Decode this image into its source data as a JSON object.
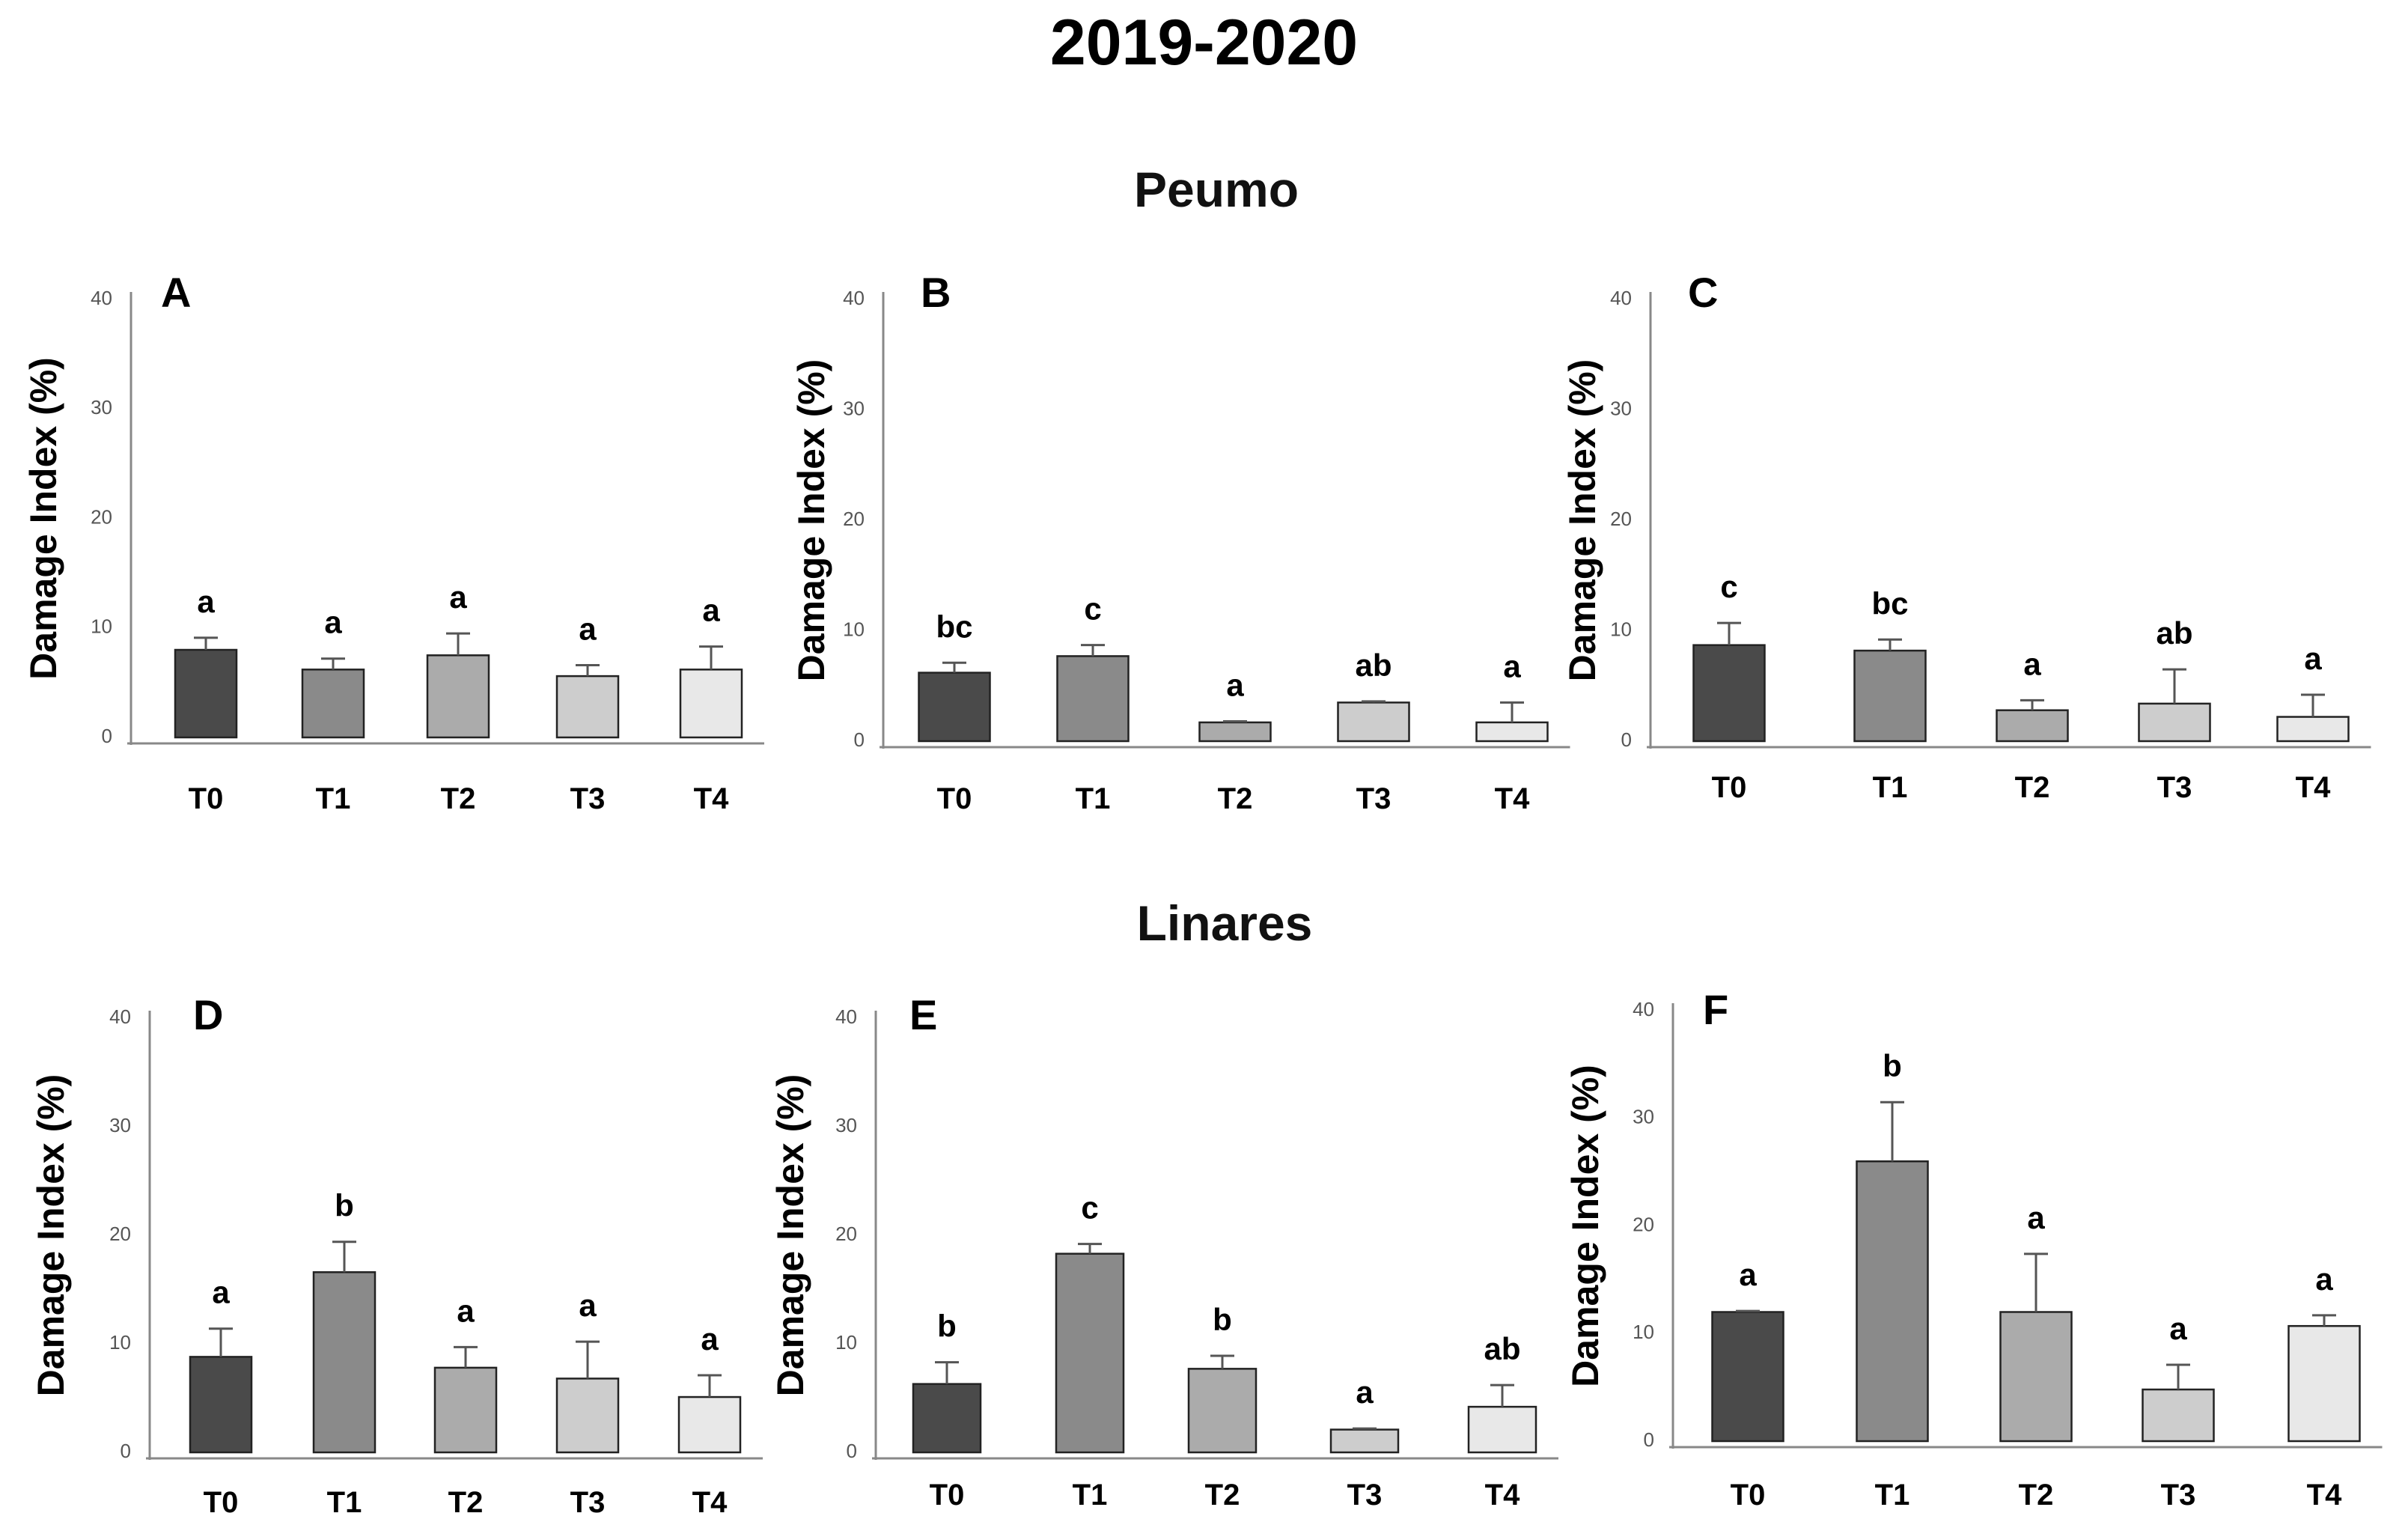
{
  "figure": {
    "title": "2019-2020",
    "sections": [
      "Peumo",
      "Linares"
    ]
  },
  "chart_data": [
    {
      "panel": "A",
      "site": "Peumo",
      "type": "bar",
      "categories": [
        "T0",
        "T1",
        "T2",
        "T3",
        "T4"
      ],
      "values": [
        8.0,
        6.2,
        7.5,
        5.6,
        6.2
      ],
      "errors": [
        1.1,
        1.0,
        2.0,
        1.0,
        2.1
      ],
      "letters": [
        "a",
        "a",
        "a",
        "a",
        "a"
      ],
      "colors": [
        "#4a4a4a",
        "#8a8a8a",
        "#ababab",
        "#cdcdcd",
        "#e8e8e8"
      ],
      "ylabel": "Damage Index (%)",
      "yticks": [
        "0",
        "10",
        "20",
        "30",
        "40"
      ],
      "ylim": [
        0,
        40
      ]
    },
    {
      "panel": "B",
      "site": "Peumo",
      "type": "bar",
      "categories": [
        "T0",
        "T1",
        "T2",
        "T3",
        "T4"
      ],
      "values": [
        6.2,
        7.7,
        1.7,
        3.5,
        1.7
      ],
      "errors": [
        0.9,
        1.0,
        0.1,
        0.1,
        1.8
      ],
      "letters": [
        "bc",
        "c",
        "a",
        "ab",
        "a"
      ],
      "colors": [
        "#4a4a4a",
        "#8a8a8a",
        "#ababab",
        "#cdcdcd",
        "#e8e8e8"
      ],
      "ylabel": "Damage Index (%)",
      "yticks": [
        "0",
        "10",
        "20",
        "30",
        "40"
      ],
      "ylim": [
        0,
        40
      ]
    },
    {
      "panel": "C",
      "site": "Peumo",
      "type": "bar",
      "categories": [
        "T0",
        "T1",
        "T2",
        "T3",
        "T4"
      ],
      "values": [
        8.7,
        8.2,
        2.8,
        3.4,
        2.2
      ],
      "errors": [
        2.0,
        1.0,
        0.9,
        3.1,
        2.0
      ],
      "letters": [
        "c",
        "bc",
        "a",
        "ab",
        "a"
      ],
      "colors": [
        "#4a4a4a",
        "#8a8a8a",
        "#ababab",
        "#cdcdcd",
        "#e8e8e8"
      ],
      "ylabel": "Damage Index (%)",
      "yticks": [
        "0",
        "10",
        "20",
        "30",
        "40"
      ],
      "ylim": [
        0,
        40
      ]
    },
    {
      "panel": "D",
      "site": "Linares",
      "type": "bar",
      "categories": [
        "T0",
        "T1",
        "T2",
        "T3",
        "T4"
      ],
      "values": [
        8.8,
        16.6,
        7.8,
        6.8,
        5.1
      ],
      "errors": [
        2.6,
        2.8,
        1.9,
        3.4,
        2.0
      ],
      "letters": [
        "a",
        "b",
        "a",
        "a",
        "a"
      ],
      "colors": [
        "#4a4a4a",
        "#8a8a8a",
        "#ababab",
        "#cdcdcd",
        "#e8e8e8"
      ],
      "ylabel": "Damage Index (%)",
      "yticks": [
        "0",
        "10",
        "20",
        "30",
        "40"
      ],
      "ylim": [
        0,
        40
      ]
    },
    {
      "panel": "E",
      "site": "Linares",
      "type": "bar",
      "categories": [
        "T0",
        "T1",
        "T2",
        "T3",
        "T4"
      ],
      "values": [
        6.3,
        18.3,
        7.7,
        2.1,
        4.2
      ],
      "errors": [
        2.0,
        0.9,
        1.2,
        0.1,
        2.0
      ],
      "letters": [
        "b",
        "c",
        "b",
        "a",
        "ab"
      ],
      "colors": [
        "#4a4a4a",
        "#8a8a8a",
        "#ababab",
        "#cdcdcd",
        "#e8e8e8"
      ],
      "ylabel": "Damage Index (%)",
      "yticks": [
        "0",
        "10",
        "20",
        "30",
        "40"
      ],
      "ylim": [
        0,
        40
      ]
    },
    {
      "panel": "F",
      "site": "Linares",
      "type": "bar",
      "categories": [
        "T0",
        "T1",
        "T2",
        "T3",
        "T4"
      ],
      "values": [
        12.0,
        26.0,
        12.0,
        4.8,
        10.7
      ],
      "errors": [
        0.1,
        5.5,
        5.4,
        2.3,
        1.0
      ],
      "letters": [
        "a",
        "b",
        "a",
        "a",
        "a"
      ],
      "colors": [
        "#4a4a4a",
        "#8a8a8a",
        "#ababab",
        "#cdcdcd",
        "#e8e8e8"
      ],
      "ylabel": "Damage Index (%)",
      "yticks": [
        "0",
        "10",
        "20",
        "30",
        "40"
      ],
      "ylim": [
        0,
        40
      ]
    }
  ]
}
